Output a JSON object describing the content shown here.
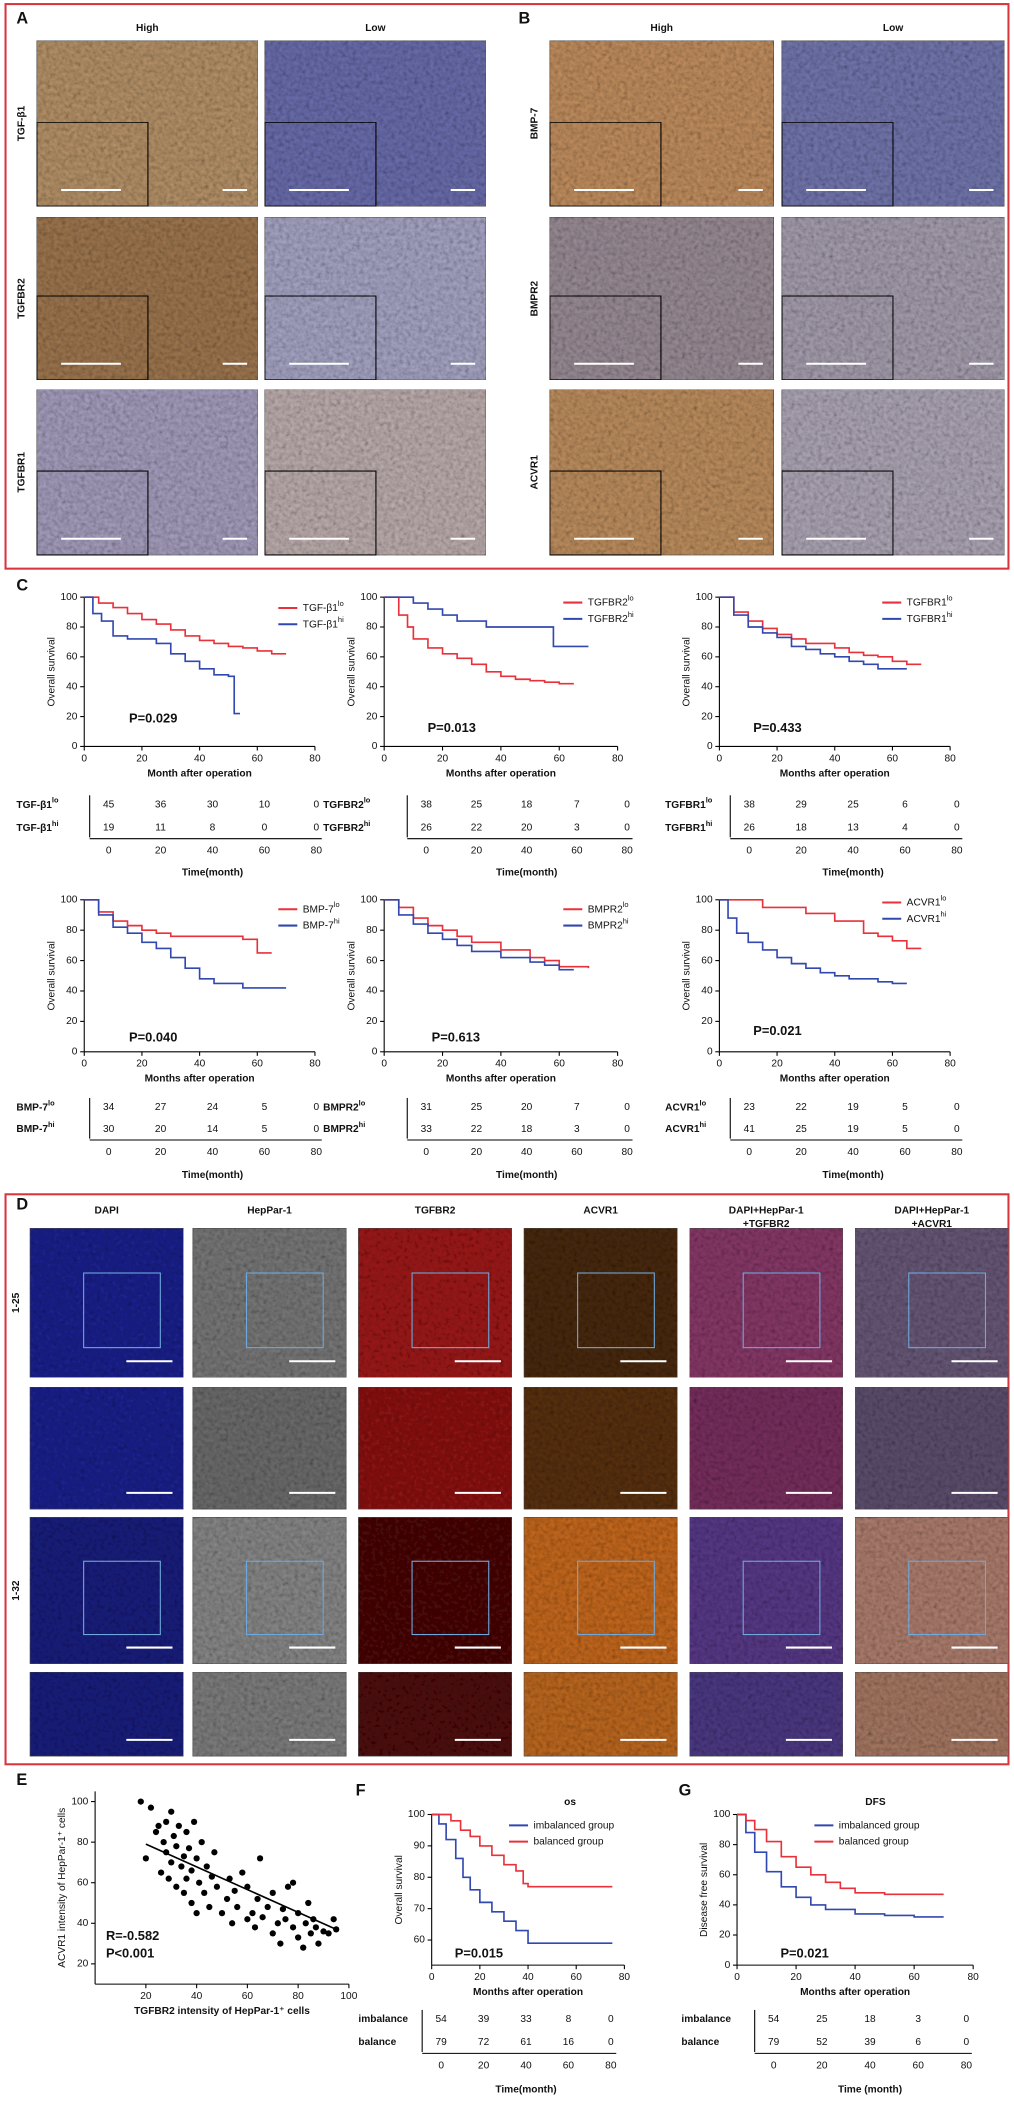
{
  "figure": {
    "panels": [
      "A",
      "B",
      "C",
      "D",
      "E",
      "F",
      "G"
    ],
    "ihc": {
      "columns": [
        "High",
        "Low"
      ],
      "A_rows": [
        "TGF-β1",
        "TGFBR2",
        "TGFBR1"
      ],
      "B_rows": [
        "BMP-7",
        "BMPR2",
        "ACVR1"
      ]
    },
    "if": {
      "columns": [
        [
          "DAPI"
        ],
        [
          "HepPar-1"
        ],
        [
          "TGFBR2"
        ],
        [
          "ACVR1"
        ],
        [
          "DAPI+HepPar-1",
          "+TGFBR2"
        ],
        [
          "DAPI+HepPar-1",
          "+ACVR1"
        ]
      ],
      "rows": [
        "1-25",
        "1-32"
      ]
    }
  },
  "chart_data": [
    {
      "type": "line",
      "xlabel": "Month after operation",
      "ylabel": "Overall survival",
      "xlim": [
        0,
        80
      ],
      "ylim": [
        0,
        100
      ],
      "xticks": [
        0,
        20,
        40,
        60,
        80
      ],
      "yticks": [
        0,
        20,
        40,
        60,
        80,
        100
      ],
      "legend": "upper right",
      "annotations": [
        "P=0.029"
      ],
      "series": [
        {
          "name": "TGF-β1",
          "sup": "lo",
          "color": "#e8313a",
          "x": [
            0,
            5,
            10,
            15,
            20,
            25,
            30,
            35,
            40,
            45,
            50,
            55,
            60,
            65,
            70
          ],
          "values": [
            100,
            96,
            93,
            89,
            85,
            82,
            78,
            74,
            71,
            69,
            67,
            66,
            64,
            62,
            62
          ]
        },
        {
          "name": "TGF-β1",
          "sup": "hi",
          "color": "#3048b0",
          "x": [
            0,
            3,
            6,
            10,
            15,
            20,
            25,
            30,
            35,
            40,
            45,
            50,
            52,
            54
          ],
          "values": [
            100,
            89,
            84,
            74,
            72,
            72,
            69,
            62,
            57,
            52,
            48,
            47,
            22,
            22
          ]
        }
      ],
      "risk_table": {
        "rows": [
          [
            45,
            36,
            30,
            10,
            0
          ],
          [
            19,
            11,
            8,
            0,
            0
          ]
        ],
        "times": [
          0,
          20,
          40,
          60,
          80
        ],
        "label": "Time(month)"
      }
    },
    {
      "type": "line",
      "xlabel": "Months after operation",
      "ylabel": "Overall survival",
      "xlim": [
        0,
        80
      ],
      "ylim": [
        0,
        100
      ],
      "xticks": [
        0,
        20,
        40,
        60,
        80
      ],
      "yticks": [
        0,
        20,
        40,
        60,
        80,
        100
      ],
      "legend": "upper right",
      "annotations": [
        "P=0.013"
      ],
      "series": [
        {
          "name": "TGFBR2",
          "sup": "lo",
          "color": "#e8313a",
          "x": [
            0,
            5,
            8,
            10,
            15,
            20,
            25,
            30,
            35,
            40,
            45,
            50,
            55,
            60,
            65
          ],
          "values": [
            100,
            88,
            80,
            72,
            66,
            62,
            59,
            55,
            50,
            47,
            45,
            44,
            43,
            42,
            42
          ]
        },
        {
          "name": "TGFBR2",
          "sup": "hi",
          "color": "#3048b0",
          "x": [
            0,
            10,
            15,
            20,
            25,
            35,
            45,
            55,
            58,
            62,
            70
          ],
          "values": [
            100,
            96,
            92,
            88,
            84,
            80,
            80,
            80,
            67,
            67,
            67
          ]
        }
      ],
      "risk_table": {
        "rows": [
          [
            38,
            25,
            18,
            7,
            0
          ],
          [
            26,
            22,
            20,
            3,
            0
          ]
        ],
        "times": [
          0,
          20,
          40,
          60,
          80
        ],
        "label": "Time(month)"
      }
    },
    {
      "type": "line",
      "xlabel": "Months after operation",
      "ylabel": "Overall survival",
      "xlim": [
        0,
        80
      ],
      "ylim": [
        0,
        100
      ],
      "xticks": [
        0,
        20,
        40,
        60,
        80
      ],
      "yticks": [
        0,
        20,
        40,
        60,
        80,
        100
      ],
      "legend": "upper right",
      "annotations": [
        "P=0.433"
      ],
      "series": [
        {
          "name": "TGFBR1",
          "sup": "lo",
          "color": "#e8313a",
          "x": [
            0,
            5,
            10,
            15,
            20,
            25,
            30,
            40,
            45,
            50,
            55,
            60,
            65,
            70
          ],
          "values": [
            100,
            90,
            84,
            79,
            75,
            72,
            69,
            66,
            63,
            61,
            60,
            57,
            55,
            55
          ]
        },
        {
          "name": "TGFBR1",
          "sup": "hi",
          "color": "#3048b0",
          "x": [
            0,
            5,
            10,
            15,
            20,
            25,
            30,
            35,
            40,
            45,
            50,
            55,
            65
          ],
          "values": [
            100,
            88,
            80,
            76,
            73,
            67,
            65,
            62,
            60,
            57,
            55,
            52,
            52
          ]
        }
      ],
      "risk_table": {
        "rows": [
          [
            38,
            29,
            25,
            6,
            0
          ],
          [
            26,
            18,
            13,
            4,
            0
          ]
        ],
        "times": [
          0,
          20,
          40,
          60,
          80
        ],
        "label": "Time(month)"
      }
    },
    {
      "type": "line",
      "xlabel": "Months after operation",
      "ylabel": "Overall survival",
      "xlim": [
        0,
        80
      ],
      "ylim": [
        0,
        100
      ],
      "xticks": [
        0,
        20,
        40,
        60,
        80
      ],
      "yticks": [
        0,
        20,
        40,
        60,
        80,
        100
      ],
      "legend": "upper right",
      "annotations": [
        "P=0.040"
      ],
      "series": [
        {
          "name": "BMP-7",
          "sup": "lo",
          "color": "#e8313a",
          "x": [
            0,
            5,
            10,
            15,
            20,
            25,
            30,
            40,
            50,
            55,
            60,
            65
          ],
          "values": [
            100,
            92,
            86,
            83,
            80,
            78,
            76,
            76,
            76,
            74,
            65,
            65
          ]
        },
        {
          "name": "BMP-7",
          "sup": "hi",
          "color": "#3048b0",
          "x": [
            0,
            5,
            10,
            15,
            20,
            25,
            30,
            35,
            40,
            45,
            55,
            60,
            70
          ],
          "values": [
            100,
            90,
            82,
            78,
            72,
            68,
            62,
            55,
            48,
            45,
            42,
            42,
            42
          ]
        }
      ],
      "risk_table": {
        "rows": [
          [
            34,
            27,
            24,
            5,
            0
          ],
          [
            30,
            20,
            14,
            5,
            0
          ]
        ],
        "times": [
          0,
          20,
          40,
          60,
          80
        ],
        "label": "Time(month)"
      }
    },
    {
      "type": "line",
      "xlabel": "Months after operation",
      "ylabel": "Overall survival",
      "xlim": [
        0,
        80
      ],
      "ylim": [
        0,
        100
      ],
      "xticks": [
        0,
        20,
        40,
        60,
        80
      ],
      "yticks": [
        0,
        20,
        40,
        60,
        80,
        100
      ],
      "legend": "upper right",
      "annotations": [
        "P=0.613"
      ],
      "series": [
        {
          "name": "BMPR2",
          "sup": "lo",
          "color": "#e8313a",
          "x": [
            0,
            5,
            10,
            15,
            20,
            25,
            30,
            40,
            50,
            55,
            60,
            70
          ],
          "values": [
            100,
            95,
            88,
            83,
            80,
            76,
            72,
            67,
            62,
            60,
            56,
            55
          ]
        },
        {
          "name": "BMPR2",
          "sup": "hi",
          "color": "#3048b0",
          "x": [
            0,
            5,
            10,
            15,
            20,
            25,
            30,
            40,
            50,
            55,
            60,
            65
          ],
          "values": [
            100,
            90,
            84,
            78,
            74,
            70,
            66,
            62,
            59,
            57,
            54,
            54
          ]
        }
      ],
      "risk_table": {
        "rows": [
          [
            31,
            25,
            20,
            7,
            0
          ],
          [
            33,
            22,
            18,
            3,
            0
          ]
        ],
        "times": [
          0,
          20,
          40,
          60,
          80
        ],
        "label": "Time(month)"
      }
    },
    {
      "type": "line",
      "xlabel": "Months after operation",
      "ylabel": "Overall survival",
      "xlim": [
        0,
        80
      ],
      "ylim": [
        0,
        100
      ],
      "xticks": [
        0,
        20,
        40,
        60,
        80
      ],
      "yticks": [
        0,
        20,
        40,
        60,
        80,
        100
      ],
      "legend": "upper right",
      "annotations": [
        "P=0.021"
      ],
      "series": [
        {
          "name": "ACVR1",
          "sup": "lo",
          "color": "#e8313a",
          "x": [
            0,
            10,
            15,
            20,
            30,
            40,
            50,
            55,
            60,
            65,
            70
          ],
          "values": [
            100,
            100,
            95,
            95,
            91,
            86,
            78,
            76,
            73,
            68,
            68
          ]
        },
        {
          "name": "ACVR1",
          "sup": "hi",
          "color": "#3048b0",
          "x": [
            0,
            3,
            6,
            10,
            15,
            20,
            25,
            30,
            35,
            40,
            45,
            55,
            60,
            65
          ],
          "values": [
            100,
            88,
            78,
            72,
            67,
            62,
            58,
            55,
            52,
            50,
            48,
            46,
            45,
            45
          ]
        }
      ],
      "risk_table": {
        "rows": [
          [
            23,
            22,
            19,
            5,
            0
          ],
          [
            41,
            25,
            19,
            5,
            0
          ]
        ],
        "times": [
          0,
          20,
          40,
          60,
          80
        ],
        "label": "Time(month)"
      }
    },
    {
      "type": "scatter",
      "xlabel": "TGFBR2 intensity of HepPar-1⁺ cells",
      "ylabel": "ACVR1 intensity of HepPar-1⁺ cells",
      "xlim": [
        0,
        100
      ],
      "ylim": [
        10,
        105
      ],
      "xticks": [
        20,
        40,
        60,
        80,
        100
      ],
      "yticks": [
        20,
        40,
        60,
        80,
        100
      ],
      "color": "#000000",
      "annotations": [
        "R=-0.582",
        "P<0.001"
      ],
      "x": [
        18,
        20,
        22,
        24,
        25,
        26,
        27,
        28,
        28,
        29,
        30,
        30,
        31,
        32,
        32,
        33,
        34,
        35,
        35,
        36,
        36,
        37,
        38,
        38,
        39,
        40,
        40,
        41,
        42,
        43,
        44,
        45,
        46,
        47,
        48,
        50,
        52,
        53,
        54,
        55,
        56,
        58,
        60,
        60,
        62,
        63,
        64,
        65,
        66,
        68,
        70,
        70,
        72,
        73,
        74,
        75,
        76,
        78,
        78,
        80,
        80,
        82,
        83,
        84,
        85,
        86,
        87,
        88,
        90,
        92,
        94,
        95
      ],
      "values": [
        100,
        72,
        97,
        85,
        88,
        65,
        80,
        90,
        75,
        62,
        95,
        70,
        83,
        58,
        78,
        88,
        68,
        73,
        55,
        85,
        62,
        77,
        50,
        66,
        90,
        45,
        72,
        60,
        80,
        55,
        68,
        48,
        63,
        75,
        58,
        45,
        52,
        62,
        40,
        56,
        48,
        65,
        42,
        58,
        45,
        38,
        52,
        72,
        43,
        48,
        35,
        55,
        40,
        30,
        47,
        42,
        58,
        38,
        60,
        33,
        45,
        28,
        40,
        50,
        35,
        42,
        38,
        30,
        36,
        35,
        42,
        37
      ],
      "trend": {
        "x": [
          20,
          95
        ],
        "values": [
          79,
          37
        ]
      }
    },
    {
      "type": "line",
      "title": "os",
      "xlabel": "Months after operation",
      "ylabel": "Overall survival",
      "xlim": [
        0,
        80
      ],
      "ylim": [
        52,
        100
      ],
      "xticks": [
        0,
        20,
        40,
        60,
        80
      ],
      "yticks": [
        60,
        70,
        80,
        90,
        100
      ],
      "legend": "upper right",
      "annotations": [
        "P=0.015"
      ],
      "series": [
        {
          "name": "imbalanced group",
          "color": "#3048b0",
          "x": [
            0,
            3,
            6,
            10,
            13,
            16,
            20,
            25,
            30,
            35,
            40,
            50,
            60,
            75
          ],
          "values": [
            100,
            97,
            92,
            86,
            80,
            76,
            72,
            69,
            66,
            63,
            59,
            59,
            59,
            59
          ]
        },
        {
          "name": "balanced group",
          "color": "#e8313a",
          "x": [
            0,
            5,
            8,
            12,
            16,
            20,
            25,
            30,
            35,
            38,
            40,
            50,
            60,
            75
          ],
          "values": [
            100,
            100,
            98,
            95,
            93,
            90,
            87,
            84,
            82,
            78,
            77,
            77,
            77,
            77
          ]
        }
      ],
      "risk_table": {
        "row_labels": [
          "imbalance",
          "balance"
        ],
        "rows": [
          [
            54,
            39,
            33,
            8,
            0
          ],
          [
            79,
            72,
            61,
            16,
            0
          ]
        ],
        "times": [
          0,
          20,
          40,
          60,
          80
        ],
        "label": "Time(month)"
      }
    },
    {
      "type": "line",
      "title": "DFS",
      "xlabel": "Months after operation",
      "ylabel": "Disease free survival",
      "xlim": [
        0,
        80
      ],
      "ylim": [
        0,
        100
      ],
      "xticks": [
        0,
        20,
        40,
        60,
        80
      ],
      "yticks": [
        0,
        20,
        40,
        60,
        80,
        100
      ],
      "legend": "upper right",
      "annotations": [
        "P=0.021"
      ],
      "series": [
        {
          "name": "imbalanced group",
          "color": "#3048b0",
          "x": [
            0,
            3,
            6,
            10,
            15,
            20,
            25,
            30,
            40,
            50,
            60,
            70
          ],
          "values": [
            100,
            88,
            75,
            62,
            52,
            45,
            40,
            37,
            34,
            33,
            32,
            32
          ]
        },
        {
          "name": "balanced group",
          "color": "#e8313a",
          "x": [
            0,
            3,
            6,
            10,
            15,
            20,
            25,
            30,
            35,
            40,
            50,
            60,
            70
          ],
          "values": [
            100,
            96,
            90,
            82,
            72,
            65,
            60,
            55,
            51,
            48,
            47,
            47,
            47
          ]
        }
      ],
      "risk_table": {
        "row_labels": [
          "imbalance",
          "balance"
        ],
        "rows": [
          [
            54,
            25,
            18,
            3,
            0
          ],
          [
            79,
            52,
            39,
            6,
            0
          ]
        ],
        "times": [
          0,
          20,
          40,
          60,
          80
        ],
        "label": "Time (month)"
      }
    }
  ]
}
